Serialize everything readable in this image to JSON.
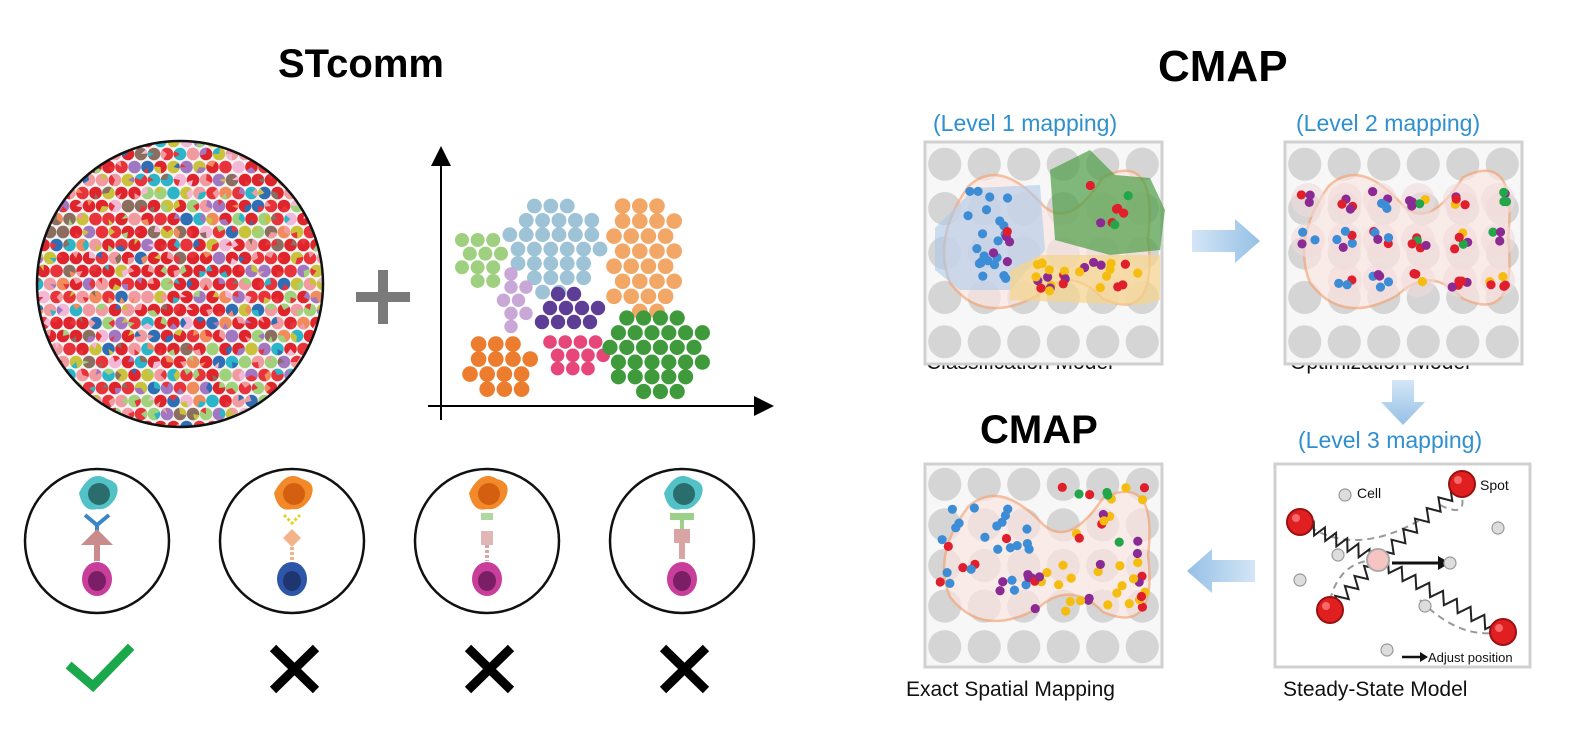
{
  "left_panel": {
    "title": "STcomm",
    "verdicts": [
      "check",
      "cross",
      "cross",
      "cross"
    ]
  },
  "right_panel": {
    "title": "CMAP",
    "panel1": {
      "level": "(Level 1 mapping)",
      "caption": "Classification Model"
    },
    "panel2": {
      "level": "(Level 2 mapping)",
      "caption": "Optimization Model"
    },
    "panel3": {
      "level": "(Level 3 mapping)",
      "caption": "Steady-State Model",
      "label_cell": "Cell",
      "label_spot": "Spot",
      "label_adjust": "Adjust position"
    },
    "panel4": {
      "title": "CMAP",
      "caption": "Exact Spatial Mapping"
    }
  },
  "colors": {
    "blue_text": "#2f8fcf",
    "check_green": "#1aa84a",
    "spot_red": "#e02020",
    "region_orange": "#f3a77a"
  }
}
